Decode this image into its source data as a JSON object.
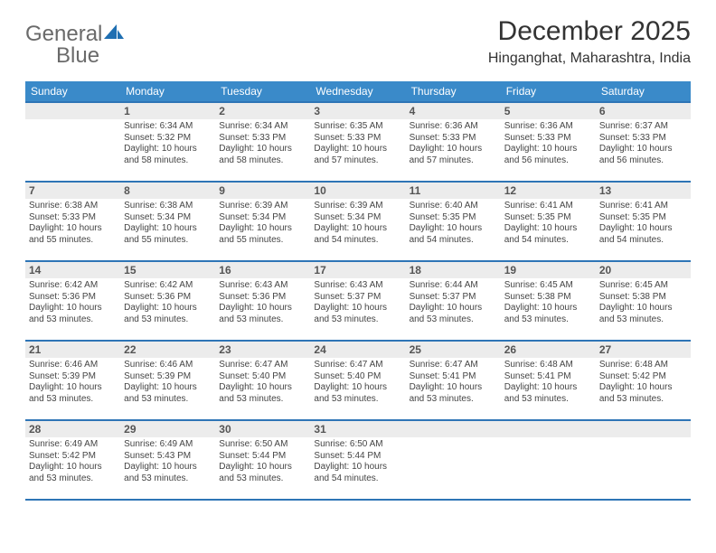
{
  "brand": {
    "part1": "General",
    "part2": "Blue"
  },
  "title": "December 2025",
  "location": "Hinganghat, Maharashtra, India",
  "colors": {
    "header_bg": "#3a8ac9",
    "rule": "#2e75b6",
    "daynum_bg": "#ececec",
    "text": "#444444",
    "brand_gray": "#6a6a6a",
    "brand_blue": "#1f6fb2"
  },
  "weekdays": [
    "Sunday",
    "Monday",
    "Tuesday",
    "Wednesday",
    "Thursday",
    "Friday",
    "Saturday"
  ],
  "weeks": [
    [
      {
        "n": "",
        "sr": "",
        "ss": "",
        "dl": ""
      },
      {
        "n": "1",
        "sr": "Sunrise: 6:34 AM",
        "ss": "Sunset: 5:32 PM",
        "dl": "Daylight: 10 hours and 58 minutes."
      },
      {
        "n": "2",
        "sr": "Sunrise: 6:34 AM",
        "ss": "Sunset: 5:33 PM",
        "dl": "Daylight: 10 hours and 58 minutes."
      },
      {
        "n": "3",
        "sr": "Sunrise: 6:35 AM",
        "ss": "Sunset: 5:33 PM",
        "dl": "Daylight: 10 hours and 57 minutes."
      },
      {
        "n": "4",
        "sr": "Sunrise: 6:36 AM",
        "ss": "Sunset: 5:33 PM",
        "dl": "Daylight: 10 hours and 57 minutes."
      },
      {
        "n": "5",
        "sr": "Sunrise: 6:36 AM",
        "ss": "Sunset: 5:33 PM",
        "dl": "Daylight: 10 hours and 56 minutes."
      },
      {
        "n": "6",
        "sr": "Sunrise: 6:37 AM",
        "ss": "Sunset: 5:33 PM",
        "dl": "Daylight: 10 hours and 56 minutes."
      }
    ],
    [
      {
        "n": "7",
        "sr": "Sunrise: 6:38 AM",
        "ss": "Sunset: 5:33 PM",
        "dl": "Daylight: 10 hours and 55 minutes."
      },
      {
        "n": "8",
        "sr": "Sunrise: 6:38 AM",
        "ss": "Sunset: 5:34 PM",
        "dl": "Daylight: 10 hours and 55 minutes."
      },
      {
        "n": "9",
        "sr": "Sunrise: 6:39 AM",
        "ss": "Sunset: 5:34 PM",
        "dl": "Daylight: 10 hours and 55 minutes."
      },
      {
        "n": "10",
        "sr": "Sunrise: 6:39 AM",
        "ss": "Sunset: 5:34 PM",
        "dl": "Daylight: 10 hours and 54 minutes."
      },
      {
        "n": "11",
        "sr": "Sunrise: 6:40 AM",
        "ss": "Sunset: 5:35 PM",
        "dl": "Daylight: 10 hours and 54 minutes."
      },
      {
        "n": "12",
        "sr": "Sunrise: 6:41 AM",
        "ss": "Sunset: 5:35 PM",
        "dl": "Daylight: 10 hours and 54 minutes."
      },
      {
        "n": "13",
        "sr": "Sunrise: 6:41 AM",
        "ss": "Sunset: 5:35 PM",
        "dl": "Daylight: 10 hours and 54 minutes."
      }
    ],
    [
      {
        "n": "14",
        "sr": "Sunrise: 6:42 AM",
        "ss": "Sunset: 5:36 PM",
        "dl": "Daylight: 10 hours and 53 minutes."
      },
      {
        "n": "15",
        "sr": "Sunrise: 6:42 AM",
        "ss": "Sunset: 5:36 PM",
        "dl": "Daylight: 10 hours and 53 minutes."
      },
      {
        "n": "16",
        "sr": "Sunrise: 6:43 AM",
        "ss": "Sunset: 5:36 PM",
        "dl": "Daylight: 10 hours and 53 minutes."
      },
      {
        "n": "17",
        "sr": "Sunrise: 6:43 AM",
        "ss": "Sunset: 5:37 PM",
        "dl": "Daylight: 10 hours and 53 minutes."
      },
      {
        "n": "18",
        "sr": "Sunrise: 6:44 AM",
        "ss": "Sunset: 5:37 PM",
        "dl": "Daylight: 10 hours and 53 minutes."
      },
      {
        "n": "19",
        "sr": "Sunrise: 6:45 AM",
        "ss": "Sunset: 5:38 PM",
        "dl": "Daylight: 10 hours and 53 minutes."
      },
      {
        "n": "20",
        "sr": "Sunrise: 6:45 AM",
        "ss": "Sunset: 5:38 PM",
        "dl": "Daylight: 10 hours and 53 minutes."
      }
    ],
    [
      {
        "n": "21",
        "sr": "Sunrise: 6:46 AM",
        "ss": "Sunset: 5:39 PM",
        "dl": "Daylight: 10 hours and 53 minutes."
      },
      {
        "n": "22",
        "sr": "Sunrise: 6:46 AM",
        "ss": "Sunset: 5:39 PM",
        "dl": "Daylight: 10 hours and 53 minutes."
      },
      {
        "n": "23",
        "sr": "Sunrise: 6:47 AM",
        "ss": "Sunset: 5:40 PM",
        "dl": "Daylight: 10 hours and 53 minutes."
      },
      {
        "n": "24",
        "sr": "Sunrise: 6:47 AM",
        "ss": "Sunset: 5:40 PM",
        "dl": "Daylight: 10 hours and 53 minutes."
      },
      {
        "n": "25",
        "sr": "Sunrise: 6:47 AM",
        "ss": "Sunset: 5:41 PM",
        "dl": "Daylight: 10 hours and 53 minutes."
      },
      {
        "n": "26",
        "sr": "Sunrise: 6:48 AM",
        "ss": "Sunset: 5:41 PM",
        "dl": "Daylight: 10 hours and 53 minutes."
      },
      {
        "n": "27",
        "sr": "Sunrise: 6:48 AM",
        "ss": "Sunset: 5:42 PM",
        "dl": "Daylight: 10 hours and 53 minutes."
      }
    ],
    [
      {
        "n": "28",
        "sr": "Sunrise: 6:49 AM",
        "ss": "Sunset: 5:42 PM",
        "dl": "Daylight: 10 hours and 53 minutes."
      },
      {
        "n": "29",
        "sr": "Sunrise: 6:49 AM",
        "ss": "Sunset: 5:43 PM",
        "dl": "Daylight: 10 hours and 53 minutes."
      },
      {
        "n": "30",
        "sr": "Sunrise: 6:50 AM",
        "ss": "Sunset: 5:44 PM",
        "dl": "Daylight: 10 hours and 53 minutes."
      },
      {
        "n": "31",
        "sr": "Sunrise: 6:50 AM",
        "ss": "Sunset: 5:44 PM",
        "dl": "Daylight: 10 hours and 54 minutes."
      },
      {
        "n": "",
        "sr": "",
        "ss": "",
        "dl": ""
      },
      {
        "n": "",
        "sr": "",
        "ss": "",
        "dl": ""
      },
      {
        "n": "",
        "sr": "",
        "ss": "",
        "dl": ""
      }
    ]
  ]
}
